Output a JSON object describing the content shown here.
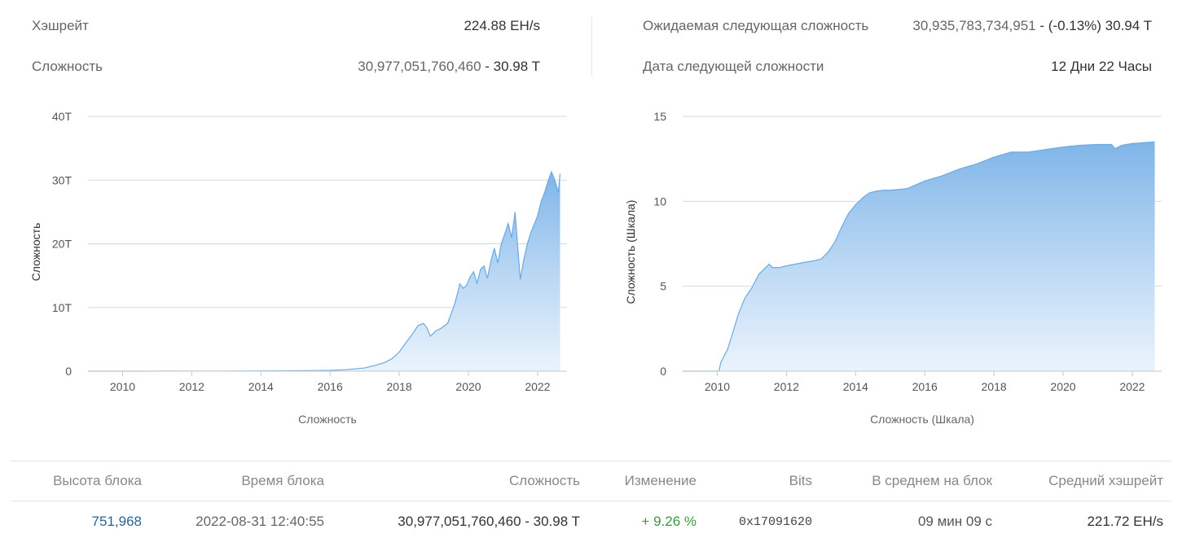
{
  "stats": {
    "hashrate_label": "Хэшрейт",
    "hashrate_value": "224.88 EH/s",
    "difficulty_label": "Сложность",
    "difficulty_value": "30,977,051,760,460",
    "difficulty_short": " - 30.98 T",
    "next_diff_label": "Ожидаемая следующая сложность",
    "next_diff_value": "30,935,783,734,951",
    "next_diff_change": " - (-0.13%) 30.94 T",
    "next_date_label": "Дата следующей сложности",
    "next_date_value": "12 Дни 22 Часы"
  },
  "colors": {
    "area_top": "#7fb5e8",
    "area_bottom": "#e8f2fc",
    "line": "#6aa9e2",
    "grid": "#d8d8d8",
    "change_positive": "#3a9a3a",
    "link": "#2a6496"
  },
  "chart_data": [
    {
      "type": "area",
      "title": "",
      "ylabel": "Сложность",
      "xlabel": "Сложность",
      "ylim": [
        0,
        40
      ],
      "y_unit": "T",
      "y_ticks": [
        "0",
        "10T",
        "20T",
        "30T",
        "40T"
      ],
      "xlim": [
        2009.0,
        2022.85
      ],
      "x_ticks": [
        "2010",
        "2012",
        "2014",
        "2016",
        "2018",
        "2020",
        "2022"
      ],
      "grid": true,
      "x": [
        2009.0,
        2013.0,
        2015.0,
        2016.0,
        2016.5,
        2017.0,
        2017.3,
        2017.6,
        2017.8,
        2018.0,
        2018.2,
        2018.4,
        2018.55,
        2018.7,
        2018.8,
        2018.9,
        2019.0,
        2019.05,
        2019.2,
        2019.4,
        2019.5,
        2019.6,
        2019.7,
        2019.75,
        2019.85,
        2019.95,
        2020.05,
        2020.15,
        2020.25,
        2020.35,
        2020.45,
        2020.55,
        2020.65,
        2020.75,
        2020.85,
        2020.95,
        2021.05,
        2021.15,
        2021.25,
        2021.35,
        2021.42,
        2021.5,
        2021.6,
        2021.7,
        2021.8,
        2021.9,
        2022.0,
        2022.1,
        2022.2,
        2022.3,
        2022.4,
        2022.5,
        2022.6,
        2022.65
      ],
      "y": [
        0.0,
        0.01,
        0.06,
        0.12,
        0.25,
        0.5,
        0.9,
        1.4,
        2.0,
        3.0,
        4.5,
        6.0,
        7.2,
        7.5,
        6.8,
        5.5,
        6.0,
        6.3,
        6.7,
        7.5,
        9.0,
        10.5,
        12.5,
        13.7,
        13.0,
        13.5,
        14.8,
        15.6,
        13.8,
        16.0,
        16.5,
        14.6,
        17.3,
        19.3,
        17.0,
        20.0,
        21.5,
        23.2,
        21.0,
        25.0,
        19.9,
        14.4,
        17.5,
        19.9,
        21.7,
        23.0,
        24.4,
        26.6,
        28.0,
        29.8,
        31.3,
        30.0,
        28.0,
        31.0
      ]
    },
    {
      "type": "area",
      "title": "",
      "ylabel": "Сложность (Шкала)",
      "xlabel": "Сложность (Шкала)",
      "ylim": [
        0,
        15
      ],
      "y_ticks": [
        "0",
        "5",
        "10",
        "15"
      ],
      "xlim": [
        2009.0,
        2022.85
      ],
      "x_ticks": [
        "2010",
        "2012",
        "2014",
        "2016",
        "2018",
        "2020",
        "2022"
      ],
      "grid": true,
      "x": [
        2009.0,
        2010.05,
        2010.1,
        2010.3,
        2010.5,
        2010.6,
        2010.8,
        2011.0,
        2011.2,
        2011.4,
        2011.5,
        2011.6,
        2011.8,
        2012.0,
        2012.5,
        2012.8,
        2013.0,
        2013.2,
        2013.4,
        2013.6,
        2013.8,
        2014.0,
        2014.2,
        2014.4,
        2014.6,
        2014.8,
        2015.0,
        2015.5,
        2016.0,
        2016.5,
        2017.0,
        2017.5,
        2018.0,
        2018.5,
        2019.0,
        2019.5,
        2020.0,
        2020.5,
        2021.0,
        2021.4,
        2021.5,
        2021.7,
        2022.0,
        2022.3,
        2022.65
      ],
      "y": [
        0.0,
        0.0,
        0.5,
        1.3,
        2.6,
        3.3,
        4.3,
        4.9,
        5.7,
        6.1,
        6.3,
        6.1,
        6.1,
        6.2,
        6.4,
        6.5,
        6.6,
        7.0,
        7.6,
        8.5,
        9.3,
        9.8,
        10.2,
        10.5,
        10.6,
        10.65,
        10.65,
        10.75,
        11.2,
        11.5,
        11.9,
        12.2,
        12.6,
        12.9,
        12.9,
        13.05,
        13.2,
        13.3,
        13.35,
        13.35,
        13.1,
        13.3,
        13.4,
        13.45,
        13.5
      ]
    }
  ],
  "table": {
    "headers": [
      "Высота блока",
      "Время блока",
      "Сложность",
      "Изменение",
      "Bits",
      "В среднем на блок",
      "Средний хэшрейт"
    ],
    "row": {
      "height": "751,968",
      "time": "2022-08-31 12:40:55",
      "difficulty": "30,977,051,760,460 - 30.98 T",
      "change": "+ 9.26 %",
      "bits": "0x17091620",
      "avg_block": "09 мин 09 с",
      "avg_hashrate": "221.72 EH/s"
    }
  }
}
